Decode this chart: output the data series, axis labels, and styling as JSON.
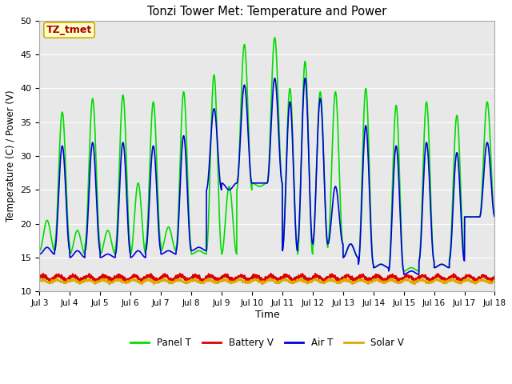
{
  "title": "Tonzi Tower Met: Temperature and Power",
  "xlabel": "Time",
  "ylabel": "Temperature (C) / Power (V)",
  "ylim": [
    10,
    50
  ],
  "xlim": [
    0,
    15
  ],
  "background_color": "#ffffff",
  "plot_bg_color": "#e8e8e8",
  "annotation_text": "TZ_tmet",
  "annotation_bg": "#ffffcc",
  "annotation_border": "#ccaa00",
  "annotation_text_color": "#aa0000",
  "tick_labels": [
    "Jul 3",
    "Jul 4",
    "Jul 5",
    "Jul 6",
    "Jul 7",
    "Jul 8",
    "Jul 9",
    "Jul 10",
    "Jul 11",
    "Jul 12",
    "Jul 13",
    "Jul 14",
    "Jul 15",
    "Jul 16",
    "Jul 17",
    "Jul 18"
  ],
  "colors": {
    "panel_t": "#00dd00",
    "battery_v": "#dd0000",
    "air_t": "#0000dd",
    "solar_v": "#ddaa00"
  },
  "line_widths": {
    "panel_t": 1.2,
    "battery_v": 1.2,
    "air_t": 1.2,
    "solar_v": 1.2
  },
  "legend_labels": [
    "Panel T",
    "Battery V",
    "Air T",
    "Solar V"
  ],
  "yticks": [
    10,
    15,
    20,
    25,
    30,
    35,
    40,
    45,
    50
  ],
  "grid_color": "#ffffff",
  "grid_alpha": 1.0
}
